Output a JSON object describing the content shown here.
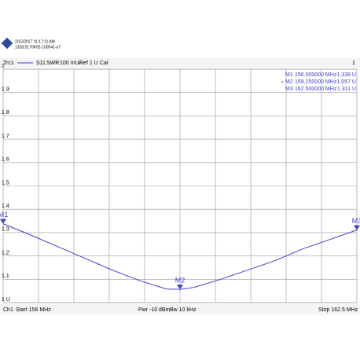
{
  "chart_data": {
    "type": "line",
    "timestamp": "2/15/2017 11:17:11 AM",
    "device_id": "1328.5170K92-100541-uT",
    "measurement": "S11",
    "format": "SWR",
    "scale": "100 mU/",
    "reference": "Ref 1 U",
    "calibration": "Cal",
    "channel_number": "1",
    "x": [
      156,
      156.5,
      157,
      157.5,
      158,
      158.5,
      159,
      159.25,
      159.5,
      160,
      160.5,
      161,
      161.5,
      162,
      162.5
    ],
    "series": [
      {
        "name": "Trc1",
        "color": "#3c3cd2",
        "values": [
          1.338,
          1.29,
          1.24,
          1.19,
          1.14,
          1.095,
          1.058,
          1.057,
          1.065,
          1.1,
          1.14,
          1.18,
          1.23,
          1.27,
          1.311
        ]
      }
    ],
    "xlim": [
      156,
      162.5
    ],
    "ylim": [
      1,
      2
    ],
    "yticks": [
      {
        "value": 1,
        "label": "1 U"
      },
      1.1,
      1.2,
      1.3,
      1.4,
      1.5,
      1.6,
      1.7,
      1.8,
      1.9,
      2
    ],
    "grid": true,
    "markers": [
      {
        "name": "M1",
        "x": 156,
        "value": 1.338,
        "x_label": "156.000000 MHz",
        "value_label": "1.338 U"
      },
      {
        "name": "M2",
        "x": 159.25,
        "value": 1.057,
        "x_label": "159.250000 MHz",
        "value_label": "1.057 U"
      },
      {
        "name": "M3",
        "x": 162.5,
        "value": 1.311,
        "x_label": "162.500000 MHz",
        "value_label": "1.311 U"
      }
    ],
    "footer_channel": "Ch1",
    "footer_start": "Start  156 MHz",
    "footer_power": "Pwr  -10 dBm",
    "footer_bandwidth": "Bw  10 kHz",
    "footer_stop": "Stop  162.5 MHz"
  }
}
